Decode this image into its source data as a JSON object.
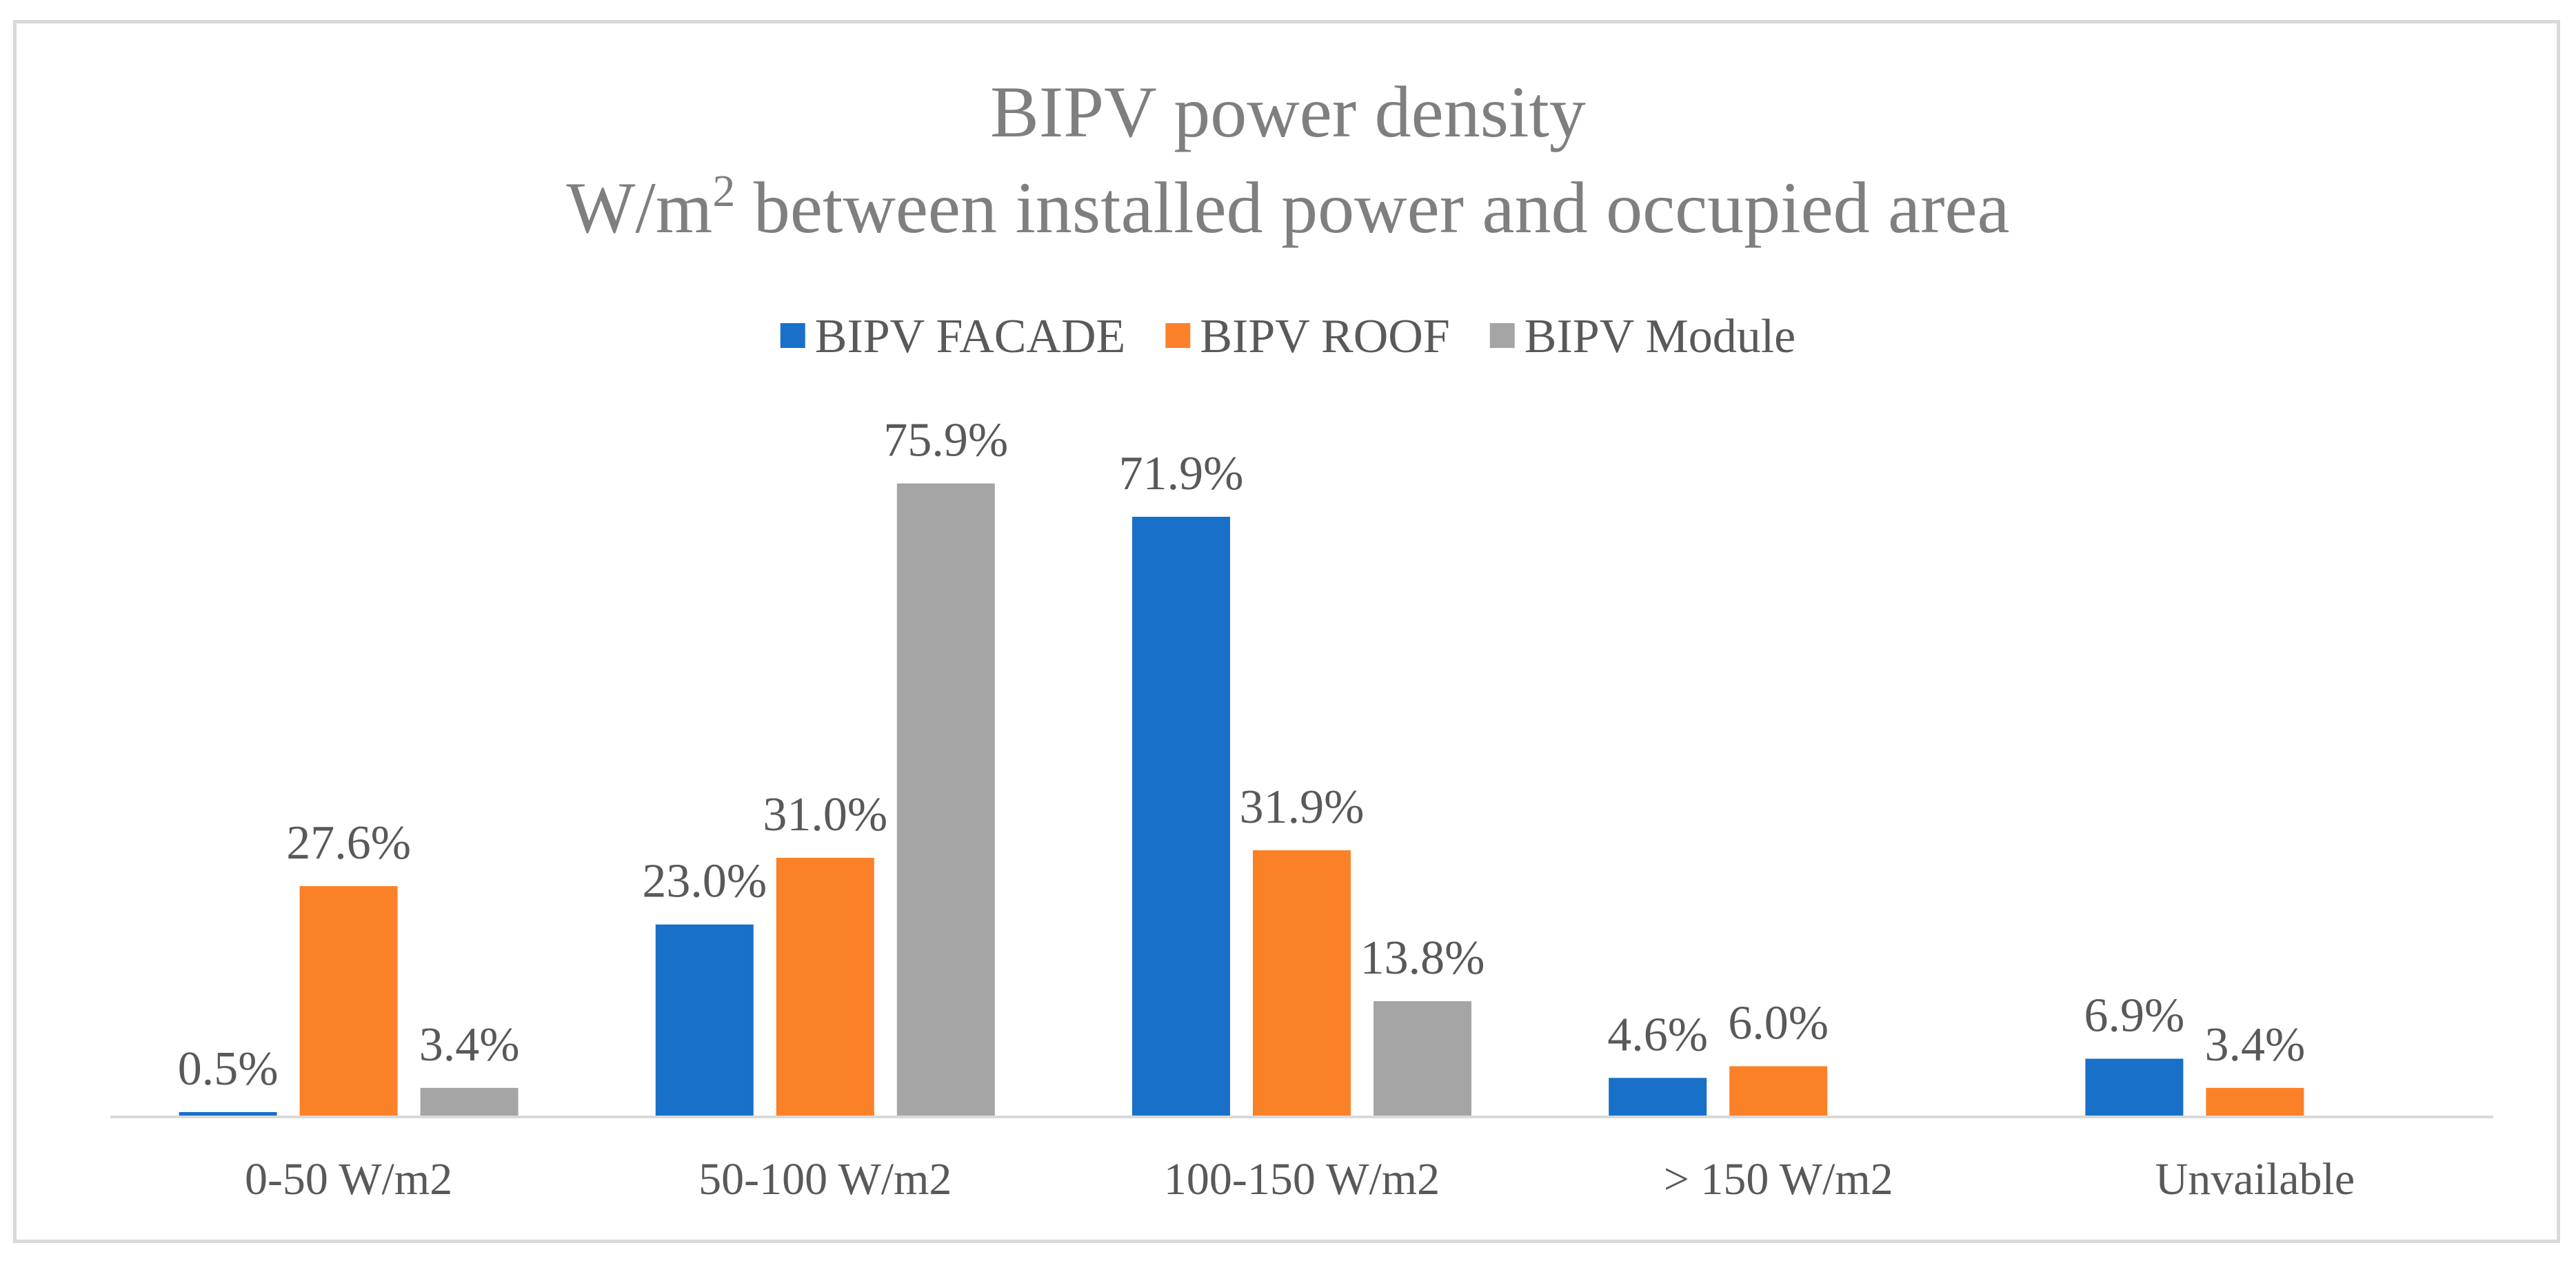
{
  "chart_data": {
    "type": "bar",
    "title": "BIPV power density",
    "subtitle_prefix": "W/m",
    "subtitle_superscript": "2",
    "subtitle_suffix": " between installed power and occupied area",
    "xlabel": "",
    "ylabel": "",
    "ylim": [
      0,
      80
    ],
    "unit_suffix": "%",
    "grid": false,
    "legend_position": "top",
    "categories": [
      "0-50 W/m2",
      "50-100 W/m2",
      "100-150 W/m2",
      "> 150 W/m2",
      "Unvailable"
    ],
    "series": [
      {
        "name": "BIPV FACADE",
        "color": "#1870C8",
        "values": [
          0.5,
          23.0,
          71.9,
          4.6,
          6.9
        ],
        "labels": [
          "0.5%",
          "23.0%",
          "71.9%",
          "4.6%",
          "6.9%"
        ]
      },
      {
        "name": "BIPV ROOF",
        "color": "#FB8128",
        "values": [
          27.6,
          31.0,
          31.9,
          6.0,
          3.4
        ],
        "labels": [
          "27.6%",
          "31.0%",
          "31.9%",
          "6.0%",
          "3.4%"
        ]
      },
      {
        "name": "BIPV Module",
        "color": "#A5A5A5",
        "values": [
          3.4,
          75.9,
          13.8,
          null,
          null
        ],
        "labels": [
          "3.4%",
          "75.9%",
          "13.8%",
          null,
          null
        ]
      }
    ],
    "axis_color": "#d9d9d9"
  }
}
